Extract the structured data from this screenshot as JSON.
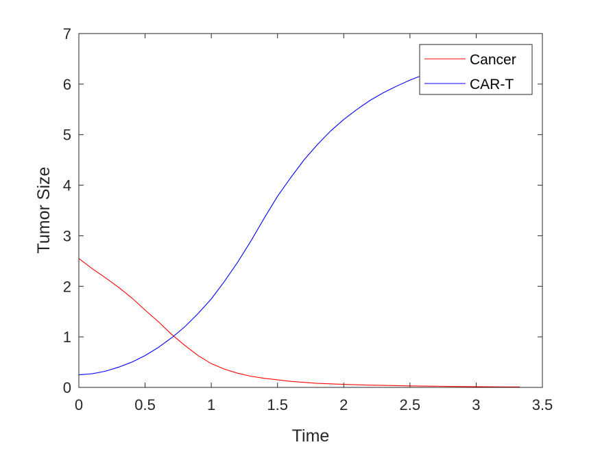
{
  "chart_data": {
    "type": "line",
    "title": "",
    "xlabel": "Time",
    "ylabel": "Tumor Size",
    "xlim": [
      0,
      3.5
    ],
    "ylim": [
      0,
      7
    ],
    "xticks": [
      0,
      0.5,
      1,
      1.5,
      2,
      2.5,
      3,
      3.5
    ],
    "xtick_labels": [
      "0",
      "0.5",
      "1",
      "1.5",
      "2",
      "2.5",
      "3",
      "3.5"
    ],
    "yticks": [
      0,
      1,
      2,
      3,
      4,
      5,
      6,
      7
    ],
    "ytick_labels": [
      "0",
      "1",
      "2",
      "3",
      "4",
      "5",
      "6",
      "7"
    ],
    "grid": false,
    "legend_position": "top-right",
    "series": [
      {
        "name": "Cancer",
        "color": "#ff0000",
        "x": [
          0,
          0.1,
          0.2,
          0.3,
          0.4,
          0.5,
          0.6,
          0.7,
          0.8,
          0.9,
          1.0,
          1.1,
          1.2,
          1.3,
          1.4,
          1.5,
          1.6,
          1.8,
          2.0,
          2.2,
          2.5,
          2.8,
          3.0,
          3.2,
          3.33
        ],
        "y": [
          2.55,
          2.35,
          2.17,
          1.98,
          1.77,
          1.53,
          1.3,
          1.05,
          0.83,
          0.63,
          0.47,
          0.36,
          0.28,
          0.22,
          0.18,
          0.15,
          0.12,
          0.08,
          0.06,
          0.045,
          0.03,
          0.02,
          0.015,
          0.01,
          0.01
        ]
      },
      {
        "name": "CAR-T",
        "color": "#0000ff",
        "x": [
          0,
          0.1,
          0.2,
          0.3,
          0.4,
          0.5,
          0.6,
          0.7,
          0.8,
          0.9,
          1.0,
          1.1,
          1.2,
          1.3,
          1.4,
          1.5,
          1.6,
          1.7,
          1.8,
          1.9,
          2.0,
          2.1,
          2.2,
          2.3,
          2.4,
          2.5,
          2.57
        ],
        "y": [
          0.25,
          0.27,
          0.32,
          0.4,
          0.5,
          0.63,
          0.79,
          0.98,
          1.2,
          1.46,
          1.75,
          2.1,
          2.48,
          2.9,
          3.35,
          3.78,
          4.15,
          4.5,
          4.8,
          5.07,
          5.3,
          5.5,
          5.68,
          5.83,
          5.96,
          6.08,
          6.15
        ]
      }
    ]
  }
}
